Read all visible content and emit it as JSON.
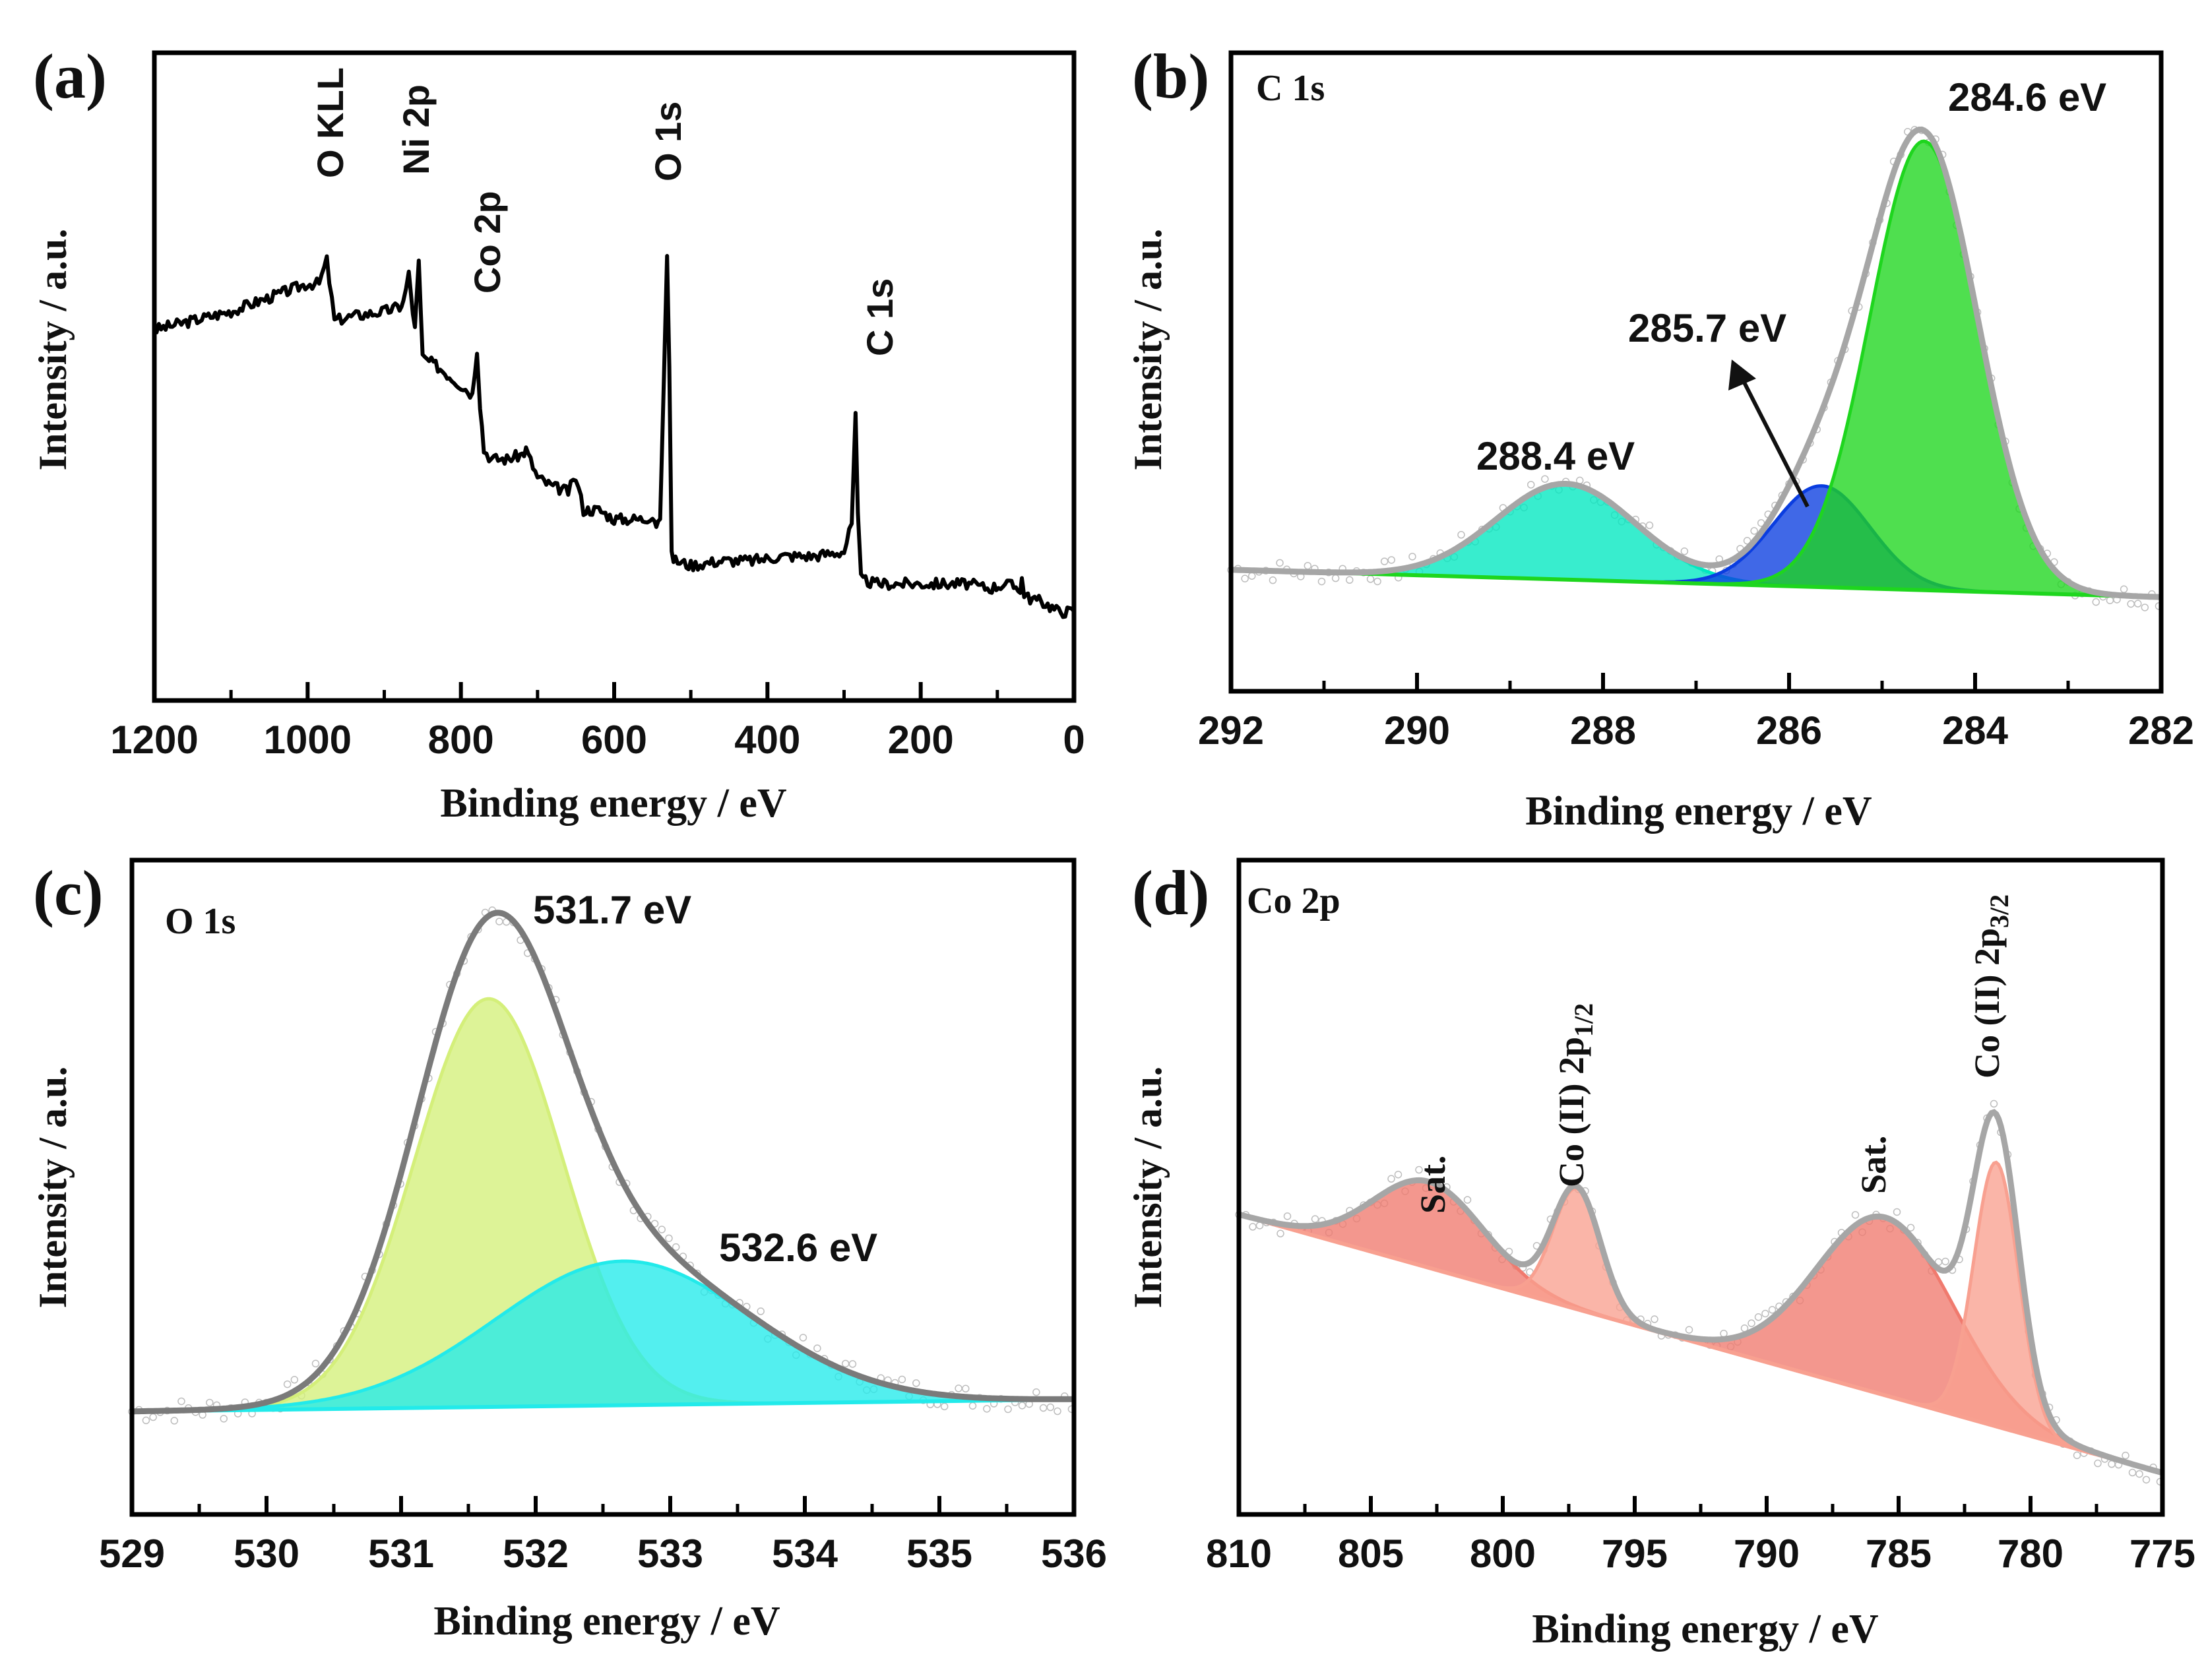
{
  "chart_data": [
    {
      "id": "a",
      "type": "line",
      "panel_label": "(a)",
      "xlabel": "Binding energy / eV",
      "ylabel": "Intensity / a.u.",
      "xlim": [
        1200,
        0
      ],
      "ylim": [
        0,
        100
      ],
      "x_ticks": [
        "1200",
        "1000",
        "800",
        "600",
        "400",
        "200",
        "0"
      ],
      "x_tick_values": [
        1200,
        1000,
        800,
        600,
        400,
        200,
        0
      ],
      "survey": {
        "x": [
          1200,
          1150,
          1100,
          1050,
          1000,
          985,
          975,
          965,
          940,
          900,
          880,
          875,
          868,
          860,
          855,
          850,
          830,
          800,
          785,
          779,
          775,
          770,
          760,
          740,
          720,
          715,
          700,
          680,
          660,
          650,
          640,
          620,
          600,
          580,
          560,
          550,
          545,
          540,
          535,
          531,
          528,
          525,
          520,
          500,
          460,
          420,
          380,
          340,
          300,
          290,
          285,
          282,
          278,
          260,
          220,
          180,
          140,
          110,
          90,
          70,
          68,
          65,
          60,
          40,
          20,
          0
        ],
        "y": [
          70,
          72,
          74,
          77,
          80,
          80,
          85,
          72,
          73,
          74,
          75,
          76,
          82,
          70,
          85,
          64,
          62,
          58,
          56,
          66,
          54,
          44,
          42,
          42,
          43,
          44,
          38,
          36,
          35,
          38,
          31,
          31,
          29,
          29,
          29,
          30,
          28,
          29,
          60,
          86,
          62,
          21,
          20,
          19,
          20,
          20,
          21,
          21,
          22,
          28,
          52,
          30,
          16,
          15,
          15,
          15,
          15,
          14,
          15,
          14,
          16,
          13,
          12,
          11,
          9,
          9
        ]
      },
      "annotations": [
        {
          "text": "O KLL",
          "x": 978
        },
        {
          "text": "Ni 2p",
          "x": 855
        },
        {
          "text": "Co 2p",
          "x": 779
        },
        {
          "text": "O 1s",
          "x": 531
        },
        {
          "text": "C 1s",
          "x": 285
        }
      ]
    },
    {
      "id": "b",
      "type": "line",
      "panel_label": "(b)",
      "inset_title": "C 1s",
      "xlabel": "Binding energy / eV",
      "ylabel": "Intensity / a.u.",
      "xlim": [
        292,
        282
      ],
      "ylim": [
        0,
        100
      ],
      "x_ticks": [
        "292",
        "290",
        "288",
        "286",
        "284",
        "282"
      ],
      "x_tick_values": [
        292,
        290,
        288,
        286,
        284,
        282
      ],
      "background": {
        "y_at_low": 14,
        "y_at_high": 9
      },
      "peaks": [
        {
          "center": 288.4,
          "amplitude": 17.5,
          "sigma": 0.75,
          "color": "#00e8c0"
        },
        {
          "center": 285.65,
          "amplitude": 18.5,
          "sigma": 0.52,
          "color": "#0a3de0"
        },
        {
          "center": 284.55,
          "amplitude": 82,
          "sigma": 0.58,
          "color": "#1ed61e"
        }
      ],
      "envelope_color": "#a6a6a6",
      "annotations": [
        {
          "text": "284.6 eV"
        },
        {
          "text": "285.7 eV"
        },
        {
          "text": "288.4 eV"
        }
      ]
    },
    {
      "id": "c",
      "type": "line",
      "panel_label": "(c)",
      "inset_title": "O 1s",
      "xlabel": "Binding energy / eV",
      "ylabel": "Intensity / a.u.",
      "xlim": [
        529,
        536
      ],
      "ylim": [
        0,
        100
      ],
      "x_ticks": [
        "529",
        "530",
        "531",
        "532",
        "533",
        "534",
        "535",
        "536"
      ],
      "x_tick_values": [
        529,
        530,
        531,
        532,
        533,
        534,
        535,
        536
      ],
      "background": {
        "y_at_low": 11,
        "y_at_high": 13
      },
      "peaks": [
        {
          "center": 531.65,
          "amplitude": 68,
          "sigma": 0.55,
          "color": "#d4ef7a"
        },
        {
          "center": 532.65,
          "amplitude": 24,
          "sigma": 0.95,
          "color": "#22eaea"
        }
      ],
      "envelope_color": "#7a7a7a",
      "annotations": [
        {
          "text": "531.7 eV"
        },
        {
          "text": "532.6 eV"
        }
      ]
    },
    {
      "id": "d",
      "type": "line",
      "panel_label": "(d)",
      "inset_title": "Co 2p",
      "xlabel": "Binding energy / eV",
      "ylabel": "Intensity / a.u.",
      "xlim": [
        810,
        775
      ],
      "ylim": [
        0,
        100
      ],
      "x_ticks": [
        "810",
        "805",
        "800",
        "795",
        "790",
        "785",
        "780",
        "775"
      ],
      "x_tick_values": [
        810,
        805,
        800,
        795,
        790,
        785,
        780,
        775
      ],
      "background": {
        "y_at_low": 55,
        "y_at_high": 10
      },
      "peaks": [
        {
          "center": 802.8,
          "amplitude": 15,
          "sigma": 2.1,
          "color": "#f07a6e"
        },
        {
          "center": 797.2,
          "amplitude": 21,
          "sigma": 0.9,
          "color": "#f8a090"
        },
        {
          "center": 785.5,
          "amplitude": 31,
          "sigma": 2.6,
          "color": "#f07a6e"
        },
        {
          "center": 781.3,
          "amplitude": 46,
          "sigma": 0.85,
          "color": "#f8a090"
        }
      ],
      "envelope_color": "#a6a6a6",
      "annotations": [
        {
          "text": "Sat."
        },
        {
          "text": "Co (II) 2p",
          "sub": "1/2"
        },
        {
          "text": "Sat."
        },
        {
          "text": "Co (II) 2p",
          "sub": "3/2"
        }
      ]
    }
  ]
}
